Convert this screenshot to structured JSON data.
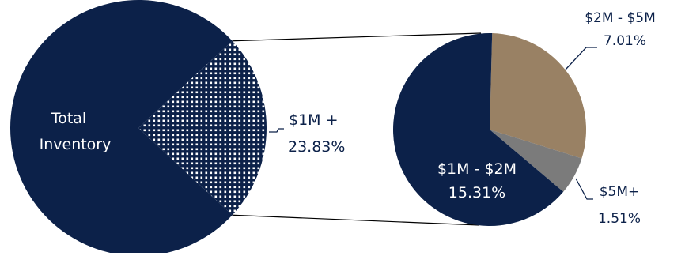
{
  "chart_data": {
    "type": "pie",
    "charts": [
      {
        "name": "main",
        "slices": [
          {
            "label": "Total Inventory",
            "value": 76.17,
            "color": "#0c2149",
            "pattern": false
          },
          {
            "label": "$1M +",
            "value": 23.83,
            "value_label": "23.83%",
            "color": "#0c2149",
            "pattern": true
          }
        ]
      },
      {
        "name": "breakdown",
        "slices": [
          {
            "label": "$2M - $5M",
            "value": 7.01,
            "value_label": "7.01%",
            "color": "#998164"
          },
          {
            "label": "$5M+",
            "value": 1.51,
            "value_label": "1.51%",
            "color": "#7b7b7b"
          },
          {
            "label": "$1M - $2M",
            "value": 15.31,
            "value_label": "15.31%",
            "color": "#0c2149"
          }
        ]
      }
    ],
    "colors": {
      "navy": "#0c2149",
      "tan": "#998164",
      "gray": "#7b7b7b",
      "text": "#0c2149"
    }
  }
}
